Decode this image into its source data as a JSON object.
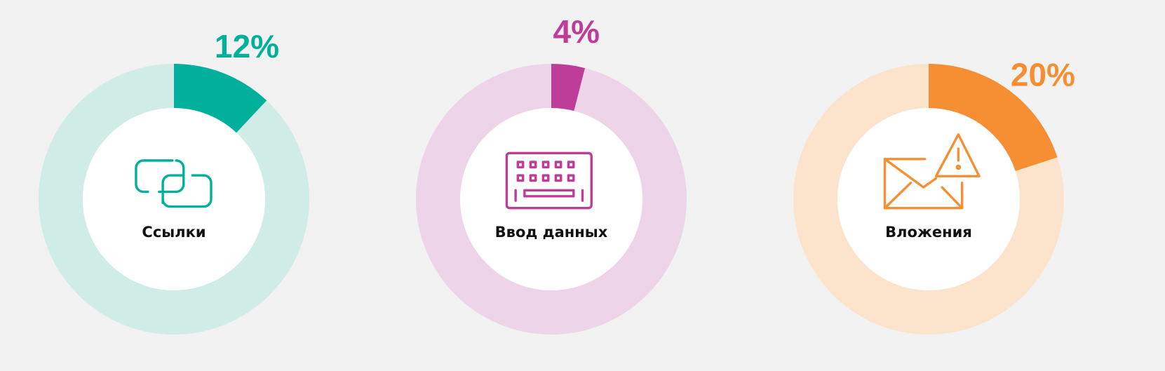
{
  "chart_data": [
    {
      "type": "donut",
      "categories": [
        "Ссылки"
      ],
      "values": [
        12
      ],
      "value_labels": [
        "12%"
      ],
      "color": "#00b09b",
      "track_color": "#d0ece6"
    },
    {
      "type": "donut",
      "categories": [
        "Ввод данных"
      ],
      "values": [
        4
      ],
      "value_labels": [
        "4%"
      ],
      "color": "#be3d98",
      "track_color": "#edd4e8"
    },
    {
      "type": "donut",
      "categories": [
        "Вложения"
      ],
      "values": [
        20
      ],
      "value_labels": [
        "20%"
      ],
      "color": "#f68f33",
      "track_color": "#fce3cc"
    }
  ]
}
